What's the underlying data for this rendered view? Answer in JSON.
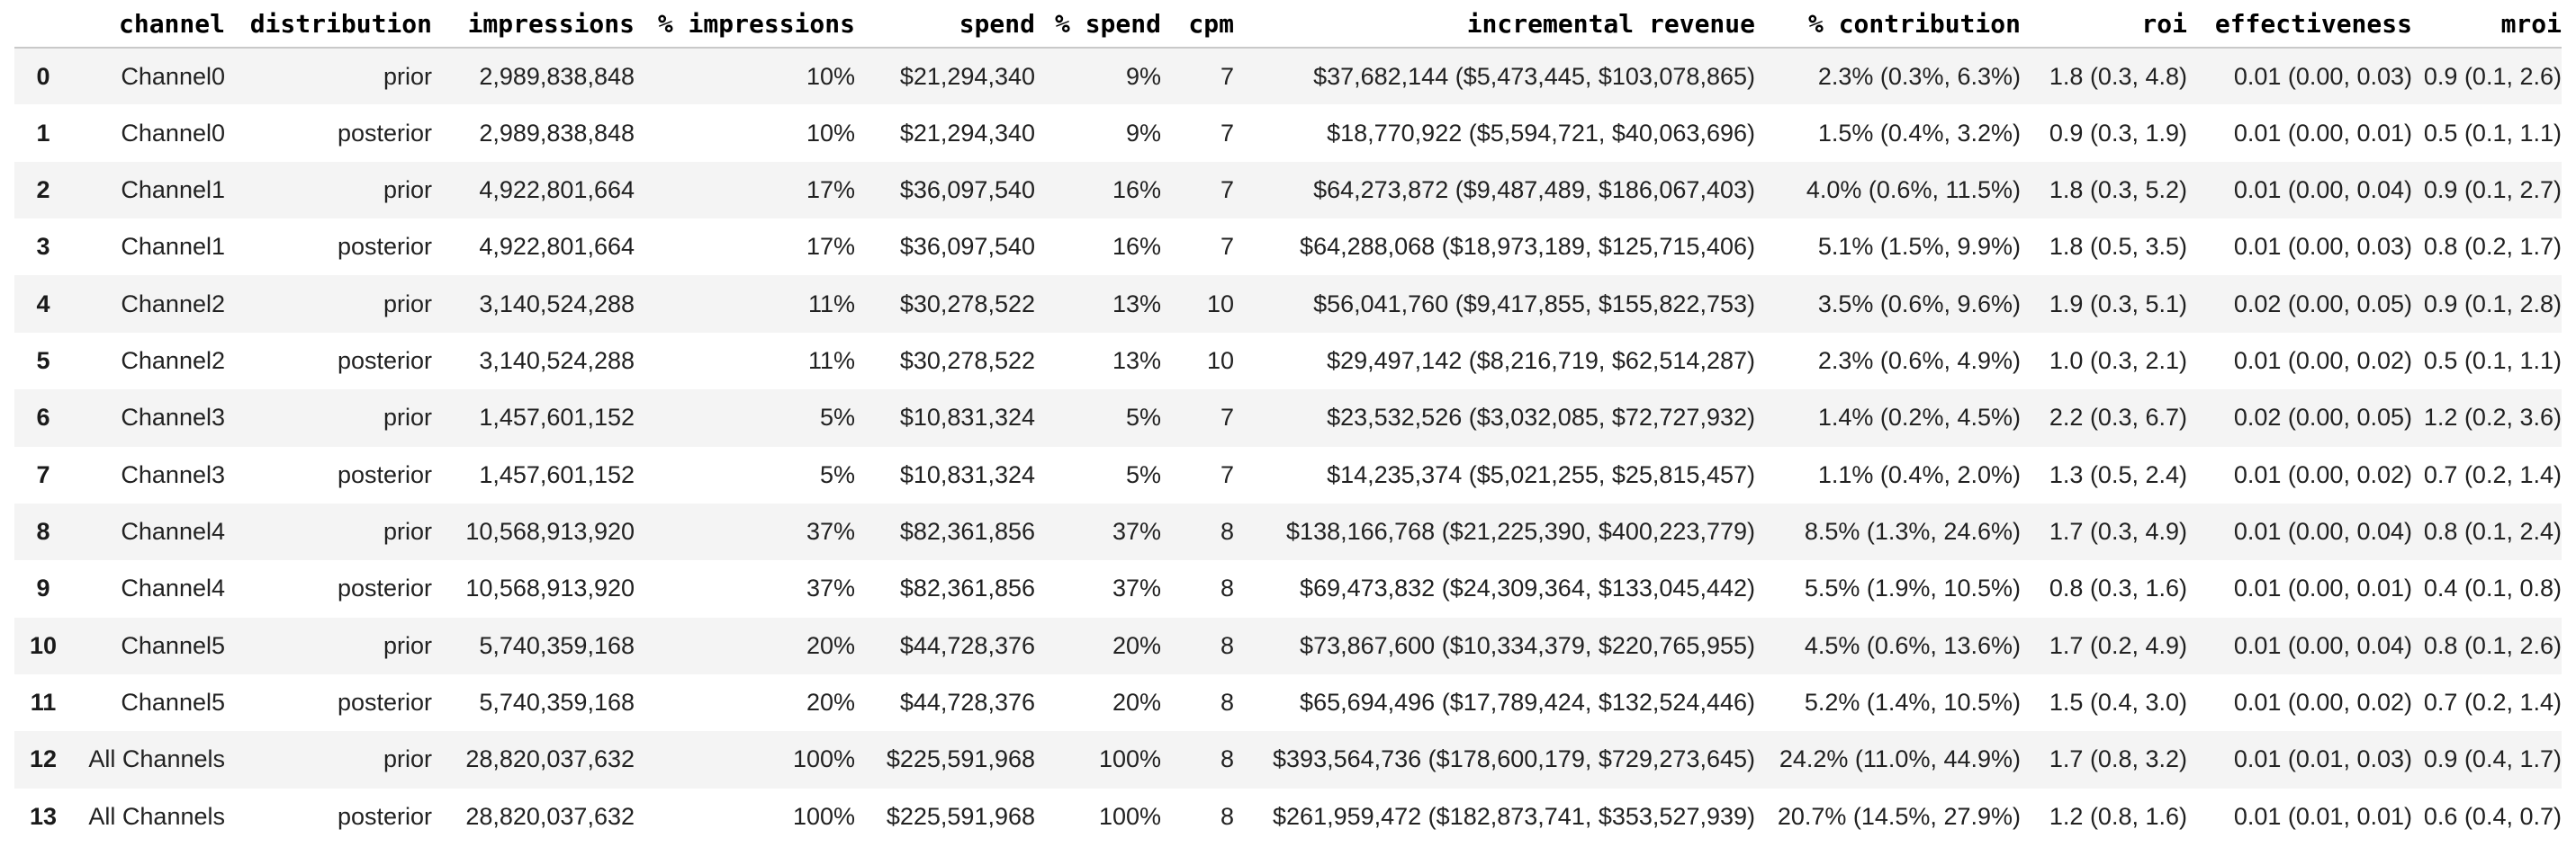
{
  "chart_data": {
    "type": "table",
    "title": "",
    "columns": [
      "",
      "channel",
      "distribution",
      "impressions",
      "% impressions",
      "spend",
      "% spend",
      "cpm",
      "incremental revenue",
      "% contribution",
      "roi",
      "effectiveness",
      "mroi"
    ],
    "rows": [
      [
        "0",
        "Channel0",
        "prior",
        "2,989,838,848",
        "10%",
        "$21,294,340",
        "9%",
        "7",
        "$37,682,144 ($5,473,445, $103,078,865)",
        "2.3% (0.3%, 6.3%)",
        "1.8 (0.3, 4.8)",
        "0.01 (0.00, 0.03)",
        "0.9 (0.1, 2.6)"
      ],
      [
        "1",
        "Channel0",
        "posterior",
        "2,989,838,848",
        "10%",
        "$21,294,340",
        "9%",
        "7",
        "$18,770,922 ($5,594,721, $40,063,696)",
        "1.5% (0.4%, 3.2%)",
        "0.9 (0.3, 1.9)",
        "0.01 (0.00, 0.01)",
        "0.5 (0.1, 1.1)"
      ],
      [
        "2",
        "Channel1",
        "prior",
        "4,922,801,664",
        "17%",
        "$36,097,540",
        "16%",
        "7",
        "$64,273,872 ($9,487,489, $186,067,403)",
        "4.0% (0.6%, 11.5%)",
        "1.8 (0.3, 5.2)",
        "0.01 (0.00, 0.04)",
        "0.9 (0.1, 2.7)"
      ],
      [
        "3",
        "Channel1",
        "posterior",
        "4,922,801,664",
        "17%",
        "$36,097,540",
        "16%",
        "7",
        "$64,288,068 ($18,973,189, $125,715,406)",
        "5.1% (1.5%, 9.9%)",
        "1.8 (0.5, 3.5)",
        "0.01 (0.00, 0.03)",
        "0.8 (0.2, 1.7)"
      ],
      [
        "4",
        "Channel2",
        "prior",
        "3,140,524,288",
        "11%",
        "$30,278,522",
        "13%",
        "10",
        "$56,041,760 ($9,417,855, $155,822,753)",
        "3.5% (0.6%, 9.6%)",
        "1.9 (0.3, 5.1)",
        "0.02 (0.00, 0.05)",
        "0.9 (0.1, 2.8)"
      ],
      [
        "5",
        "Channel2",
        "posterior",
        "3,140,524,288",
        "11%",
        "$30,278,522",
        "13%",
        "10",
        "$29,497,142 ($8,216,719, $62,514,287)",
        "2.3% (0.6%, 4.9%)",
        "1.0 (0.3, 2.1)",
        "0.01 (0.00, 0.02)",
        "0.5 (0.1, 1.1)"
      ],
      [
        "6",
        "Channel3",
        "prior",
        "1,457,601,152",
        "5%",
        "$10,831,324",
        "5%",
        "7",
        "$23,532,526 ($3,032,085, $72,727,932)",
        "1.4% (0.2%, 4.5%)",
        "2.2 (0.3, 6.7)",
        "0.02 (0.00, 0.05)",
        "1.2 (0.2, 3.6)"
      ],
      [
        "7",
        "Channel3",
        "posterior",
        "1,457,601,152",
        "5%",
        "$10,831,324",
        "5%",
        "7",
        "$14,235,374 ($5,021,255, $25,815,457)",
        "1.1% (0.4%, 2.0%)",
        "1.3 (0.5, 2.4)",
        "0.01 (0.00, 0.02)",
        "0.7 (0.2, 1.4)"
      ],
      [
        "8",
        "Channel4",
        "prior",
        "10,568,913,920",
        "37%",
        "$82,361,856",
        "37%",
        "8",
        "$138,166,768 ($21,225,390, $400,223,779)",
        "8.5% (1.3%, 24.6%)",
        "1.7 (0.3, 4.9)",
        "0.01 (0.00, 0.04)",
        "0.8 (0.1, 2.4)"
      ],
      [
        "9",
        "Channel4",
        "posterior",
        "10,568,913,920",
        "37%",
        "$82,361,856",
        "37%",
        "8",
        "$69,473,832 ($24,309,364, $133,045,442)",
        "5.5% (1.9%, 10.5%)",
        "0.8 (0.3, 1.6)",
        "0.01 (0.00, 0.01)",
        "0.4 (0.1, 0.8)"
      ],
      [
        "10",
        "Channel5",
        "prior",
        "5,740,359,168",
        "20%",
        "$44,728,376",
        "20%",
        "8",
        "$73,867,600 ($10,334,379, $220,765,955)",
        "4.5% (0.6%, 13.6%)",
        "1.7 (0.2, 4.9)",
        "0.01 (0.00, 0.04)",
        "0.8 (0.1, 2.6)"
      ],
      [
        "11",
        "Channel5",
        "posterior",
        "5,740,359,168",
        "20%",
        "$44,728,376",
        "20%",
        "8",
        "$65,694,496 ($17,789,424, $132,524,446)",
        "5.2% (1.4%, 10.5%)",
        "1.5 (0.4, 3.0)",
        "0.01 (0.00, 0.02)",
        "0.7 (0.2, 1.4)"
      ],
      [
        "12",
        "All Channels",
        "prior",
        "28,820,037,632",
        "100%",
        "$225,591,968",
        "100%",
        "8",
        "$393,564,736 ($178,600,179, $729,273,645)",
        "24.2% (11.0%, 44.9%)",
        "1.7 (0.8, 3.2)",
        "0.01 (0.01, 0.03)",
        "0.9 (0.4, 1.7)"
      ],
      [
        "13",
        "All Channels",
        "posterior",
        "28,820,037,632",
        "100%",
        "$225,591,968",
        "100%",
        "8",
        "$261,959,472 ($182,873,741, $353,527,939)",
        "20.7% (14.5%, 27.9%)",
        "1.2 (0.8, 1.6)",
        "0.01 (0.01, 0.01)",
        "0.6 (0.4, 0.7)"
      ]
    ],
    "layout": {
      "grid": false,
      "striped_rows": "even data rows shaded",
      "header_alignment": "right",
      "cell_alignment": "right",
      "index_alignment": "center"
    }
  },
  "styles": {
    "stripe_color": "#f4f4f4",
    "divider_color": "#c9c9c9",
    "text_color": "#212121",
    "index_color": "#1a1a1a",
    "header_color": "#000000",
    "bg_color": "#ffffff"
  }
}
